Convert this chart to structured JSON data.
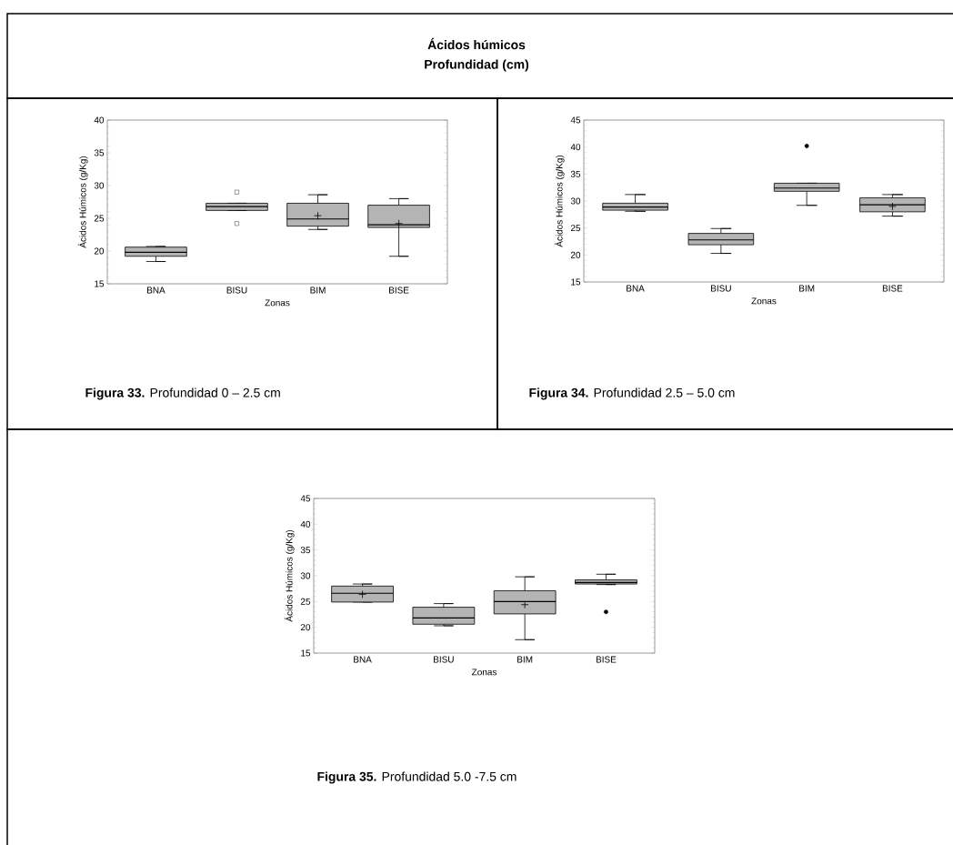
{
  "chart_data": [
    {
      "type": "box",
      "title": "Ácidos húmicos",
      "subtitle": "Profundidad (cm)",
      "annotations": [
        "**Figura 33.** Profundidad 0 – 2.5 cm"
      ],
      "xlabel": "Zonas",
      "ylabel": "Ácidos Húmicos (g/Kg)",
      "categories": [
        "BNA",
        "BISU",
        "BIM",
        "BISE"
      ],
      "ylim": [
        15,
        40
      ],
      "yticks": [
        15,
        20,
        25,
        30,
        35,
        40
      ],
      "marker": "square",
      "series": [
        {
          "color": "#b4b4b4",
          "boxes": [
            {
              "low": 18.4,
              "q1": 19.2,
              "median": 19.8,
              "q3": 20.6,
              "high": 20.7
            },
            {
              "low": 26.2,
              "q1": 26.2,
              "median": 26.8,
              "q3": 27.3,
              "high": 27.3,
              "outliers": [
                29.0,
                24.2
              ]
            },
            {
              "low": 23.3,
              "q1": 23.8,
              "median": 24.9,
              "q3": 27.3,
              "high": 28.6,
              "mean": 25.4
            },
            {
              "low": 19.2,
              "q1": 23.6,
              "median": 24.0,
              "q3": 27.0,
              "high": 28.0,
              "mean": 24.2
            }
          ]
        }
      ]
    },
    {
      "type": "box",
      "annotations": [
        "**Figura 34.** Profundidad 2.5 – 5.0 cm"
      ],
      "xlabel": "Zonas",
      "ylabel": "Ácidos Húmicos (g/Kg)",
      "categories": [
        "BNA",
        "BISU",
        "BIM",
        "BISE"
      ],
      "ylim": [
        15,
        45
      ],
      "yticks": [
        15,
        20,
        25,
        30,
        35,
        40,
        45
      ],
      "marker": "circle",
      "series": [
        {
          "color": "#b4b4b4",
          "boxes": [
            {
              "low": 28.1,
              "q1": 28.3,
              "median": 28.9,
              "q3": 29.6,
              "high": 31.2
            },
            {
              "low": 20.3,
              "q1": 21.9,
              "median": 22.8,
              "q3": 24.0,
              "high": 24.9
            },
            {
              "low": 29.2,
              "q1": 31.8,
              "median": 32.4,
              "q3": 33.3,
              "high": 33.3,
              "outliers": [
                40.2
              ]
            },
            {
              "low": 27.2,
              "q1": 28.0,
              "median": 29.3,
              "q3": 30.6,
              "high": 31.2,
              "mean": 29.0
            }
          ]
        }
      ]
    },
    {
      "type": "box",
      "annotations": [
        "**Figura 35.** Profundidad 5.0 -7.5 cm"
      ],
      "xlabel": "Zonas",
      "ylabel": "Ácidos Húmicos (g/Kg)",
      "categories": [
        "BNA",
        "BISU",
        "BIM",
        "BISE"
      ],
      "ylim": [
        15,
        45
      ],
      "yticks": [
        15,
        20,
        25,
        30,
        35,
        40,
        45
      ],
      "marker": "circle",
      "series": [
        {
          "color": "#b4b4b4",
          "boxes": [
            {
              "low": 24.9,
              "q1": 24.9,
              "median": 26.6,
              "q3": 28.0,
              "high": 28.4,
              "mean": 26.4
            },
            {
              "low": 20.3,
              "q1": 20.6,
              "median": 21.8,
              "q3": 23.9,
              "high": 24.6
            },
            {
              "low": 17.6,
              "q1": 22.6,
              "median": 25.0,
              "q3": 27.1,
              "high": 29.8,
              "mean": 24.4
            },
            {
              "low": 28.3,
              "q1": 28.4,
              "median": 28.7,
              "q3": 29.2,
              "high": 30.3,
              "outliers": [
                23.0
              ]
            }
          ]
        }
      ]
    }
  ]
}
